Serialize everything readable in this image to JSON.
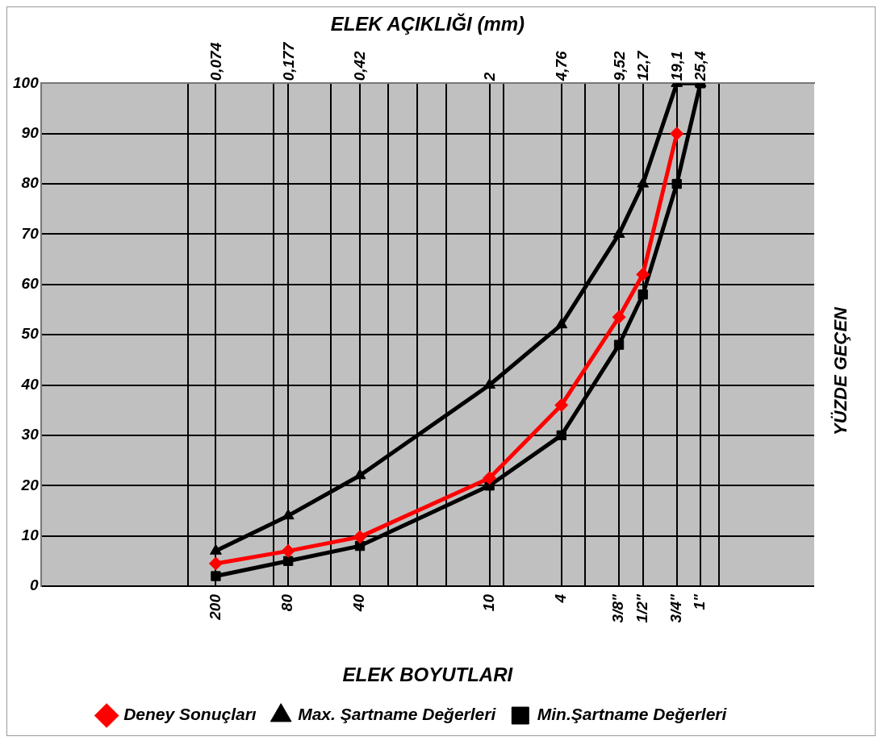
{
  "chart_data": {
    "type": "line",
    "xlabel": "ELEK AÇIKLIĞI (mm)",
    "ylabel": "YÜZDE GEÇEN",
    "x": [
      0.074,
      0.177,
      0.42,
      2,
      4.76,
      9.52,
      12.7,
      19.1,
      25.4
    ],
    "series": [
      {
        "name": "Min.Şartname Değerleri",
        "color": "#000000",
        "marker": "square",
        "values": [
          2,
          5,
          8,
          20,
          30,
          48,
          58,
          80,
          100
        ]
      },
      {
        "name": "Max. Şartname Değerleri",
        "color": "#000000",
        "marker": "triangle",
        "values": [
          7,
          14,
          22,
          40,
          52,
          70,
          80,
          100,
          100
        ]
      },
      {
        "name": "Deney Sonuçları",
        "color": "#ff0000",
        "marker": "diamond",
        "values": [
          4.5,
          7,
          9.8,
          21.5,
          36,
          53.5,
          62,
          90,
          null
        ]
      }
    ],
    "log": "x",
    "xlim": [
      0.009,
      100
    ],
    "xticks": [
      {
        "value": 0.053,
        "label": null
      },
      {
        "value": 0.074,
        "label": "0,074"
      },
      {
        "value": 0.149,
        "label": null
      },
      {
        "value": 0.177,
        "label": "0,177"
      },
      {
        "value": 0.297,
        "label": null
      },
      {
        "value": 0.42,
        "label": "0,42"
      },
      {
        "value": 0.59,
        "label": null
      },
      {
        "value": 0.84,
        "label": null
      },
      {
        "value": 1.19,
        "label": null
      },
      {
        "value": 2,
        "label": "2"
      },
      {
        "value": 2.38,
        "label": null
      },
      {
        "value": 4.76,
        "label": "4,76"
      },
      {
        "value": 6.35,
        "label": null
      },
      {
        "value": 9.52,
        "label": "9,52"
      },
      {
        "value": 12.7,
        "label": "12,7"
      },
      {
        "value": 19.1,
        "label": "19,1"
      },
      {
        "value": 25.4,
        "label": "25,4"
      },
      {
        "value": 31.75,
        "label": null
      }
    ],
    "ylim": [
      0,
      100
    ],
    "yticks": [
      0,
      10,
      20,
      30,
      40,
      50,
      60,
      70,
      80,
      90,
      100
    ],
    "annotations": [
      "ELEK BOYUTLARI",
      "200",
      "80",
      "40",
      "10",
      "4",
      "3/8\"",
      "1/2\"",
      "3/4\"",
      "1\""
    ],
    "grid": true,
    "legend": "bottom",
    "line_style": "solid"
  }
}
